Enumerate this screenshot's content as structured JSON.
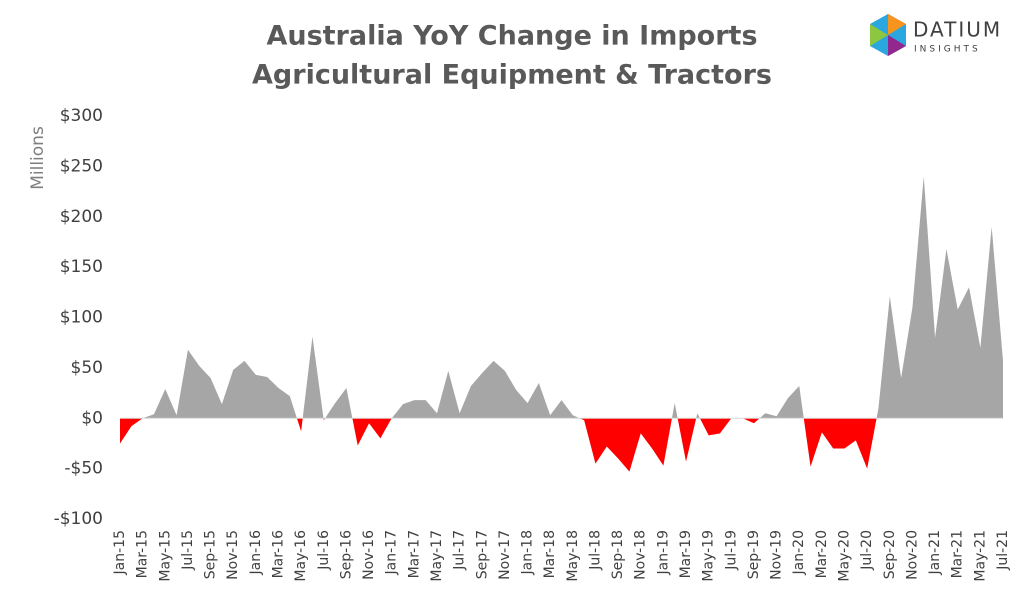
{
  "chart_data": {
    "type": "area",
    "title": "Australia YoY Change in Imports",
    "subtitle": "Agricultural Equipment & Tractors",
    "y_label": "Millions",
    "brand": {
      "name": "DATIUM",
      "tagline": "INSIGHTS"
    },
    "categories": [
      "Jan-15",
      null,
      "Mar-15",
      null,
      "May-15",
      null,
      "Jul-15",
      null,
      "Sep-15",
      null,
      "Nov-15",
      null,
      "Jan-16",
      null,
      "Mar-16",
      null,
      "May-16",
      null,
      "Jul-16",
      null,
      "Sep-16",
      null,
      "Nov-16",
      null,
      "Jan-17",
      null,
      "Mar-17",
      null,
      "May-17",
      null,
      "Jul-17",
      null,
      "Sep-17",
      null,
      "Nov-17",
      null,
      "Jan-18",
      null,
      "Mar-18",
      null,
      "May-18",
      null,
      "Jul-18",
      null,
      "Sep-18",
      null,
      "Nov-18",
      null,
      "Jan-19",
      null,
      "Mar-19",
      null,
      "May-19",
      null,
      "Jul-19",
      null,
      "Sep-19",
      null,
      "Nov-19",
      null,
      "Jan-20",
      null,
      "Mar-20",
      null,
      "May-20",
      null,
      "Jul-20",
      null,
      "Sep-20",
      null,
      "Nov-20",
      null,
      "Jan-21",
      null,
      "Mar-21",
      null,
      "May-21",
      null,
      "Jul-21"
    ],
    "values": [
      -25,
      -8,
      0,
      4,
      29,
      3,
      68,
      52,
      40,
      14,
      48,
      57,
      43,
      41,
      30,
      22,
      -13,
      81,
      -2,
      15,
      30,
      -27,
      -5,
      -20,
      0,
      14,
      18,
      18,
      5,
      47,
      5,
      32,
      45,
      57,
      47,
      28,
      15,
      35,
      3,
      18,
      3,
      -2,
      -45,
      -28,
      -40,
      -53,
      -15,
      -30,
      -47,
      15,
      -43,
      5,
      -17,
      -15,
      0,
      0,
      -5,
      5,
      2,
      20,
      32,
      -48,
      -14,
      -30,
      -30,
      -22,
      -50,
      10,
      121,
      40,
      110,
      240,
      80,
      168,
      108,
      130,
      70,
      190,
      57
    ],
    "positive_color": "#a6a6a6",
    "negative_color": "#ff0000",
    "ylim": [
      -100,
      300
    ],
    "yticks": [
      {
        "value": -100,
        "label": "-$100"
      },
      {
        "value": -50,
        "label": "-$50"
      },
      {
        "value": 0,
        "label": "$0"
      },
      {
        "value": 50,
        "label": "$50"
      },
      {
        "value": 100,
        "label": "$100"
      },
      {
        "value": 150,
        "label": "$150"
      },
      {
        "value": 200,
        "label": "$200"
      },
      {
        "value": 250,
        "label": "$250"
      },
      {
        "value": 300,
        "label": "$300"
      }
    ],
    "grid": false
  }
}
